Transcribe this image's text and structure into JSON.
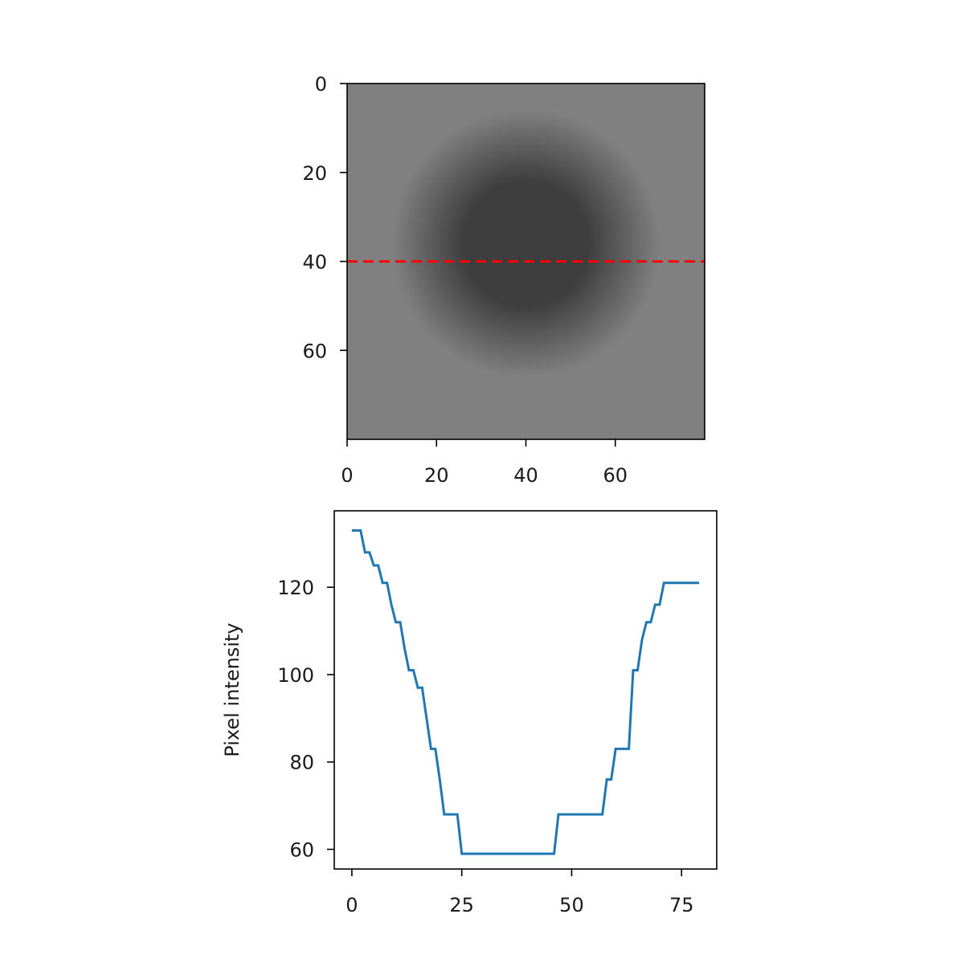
{
  "chart_data": [
    {
      "type": "heatmap",
      "title": "",
      "xlabel": "",
      "ylabel": "",
      "xlim": [
        0,
        80
      ],
      "ylim": [
        80,
        0
      ],
      "x_ticks": [
        0,
        20,
        40,
        60
      ],
      "y_ticks": [
        0,
        20,
        40,
        60
      ],
      "colormap": "gray",
      "image": {
        "center": [
          40,
          36
        ],
        "background_value": 128,
        "dark_value": 62,
        "core_radius": 14,
        "falloff_radius": 30,
        "vmin": 0,
        "vmax": 255
      },
      "annotations": [
        {
          "type": "hline",
          "y": 40,
          "x_range": [
            0,
            80
          ],
          "style": "dashed",
          "color": "#ff0000"
        }
      ]
    },
    {
      "type": "line",
      "title": "",
      "xlabel": "",
      "ylabel": "Pixel intensity",
      "xlim": [
        -4,
        83
      ],
      "ylim": [
        55.5,
        137.5
      ],
      "x_ticks": [
        0,
        25,
        50,
        75
      ],
      "y_ticks": [
        60,
        80,
        100,
        120
      ],
      "grid": false,
      "series": [
        {
          "color": "#1f77b4",
          "x": [
            0,
            1,
            2,
            3,
            4,
            5,
            6,
            7,
            8,
            9,
            10,
            11,
            12,
            13,
            14,
            15,
            16,
            17,
            18,
            19,
            20,
            21,
            22,
            23,
            24,
            25,
            26,
            27,
            28,
            29,
            30,
            31,
            32,
            33,
            34,
            35,
            36,
            37,
            38,
            39,
            40,
            41,
            42,
            43,
            44,
            45,
            46,
            47,
            48,
            49,
            50,
            51,
            52,
            53,
            54,
            55,
            56,
            57,
            58,
            59,
            60,
            61,
            62,
            63,
            64,
            65,
            66,
            67,
            68,
            69,
            70,
            71,
            72,
            73,
            74,
            75,
            76,
            77,
            78,
            79
          ],
          "values": [
            133,
            133,
            133,
            128,
            128,
            125,
            125,
            121,
            121,
            116,
            112,
            112,
            106,
            101,
            101,
            97,
            97,
            90,
            83,
            83,
            76,
            68,
            68,
            68,
            68,
            59,
            59,
            59,
            59,
            59,
            59,
            59,
            59,
            59,
            59,
            59,
            59,
            59,
            59,
            59,
            59,
            59,
            59,
            59,
            59,
            59,
            59,
            68,
            68,
            68,
            68,
            68,
            68,
            68,
            68,
            68,
            68,
            68,
            76,
            76,
            83,
            83,
            83,
            83,
            101,
            101,
            108,
            112,
            112,
            116,
            116,
            121,
            121,
            121,
            121,
            121,
            121,
            121,
            121,
            121
          ]
        }
      ]
    }
  ]
}
